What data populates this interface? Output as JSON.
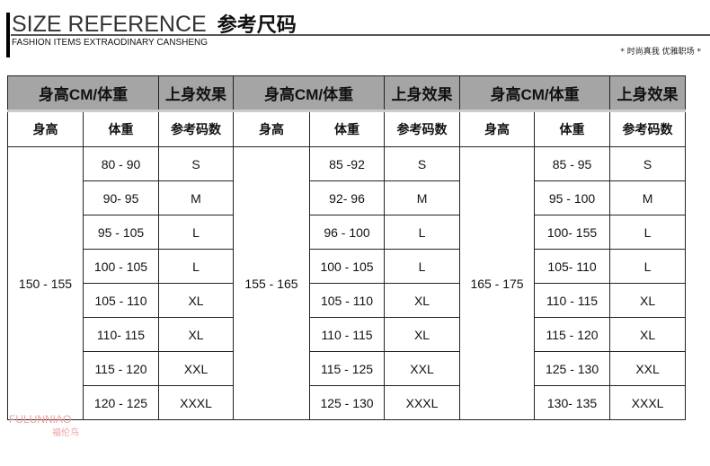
{
  "header": {
    "title": "SIZE REFERENCE",
    "title_cn": "参考尺码",
    "subtitle": "FASHION  ITEMS EXTRAODINARY  CANSHENG",
    "slogan": "* 时尚真我 优雅职场 *"
  },
  "table": {
    "group_headers": [
      "身高CM/体重",
      "上身效果"
    ],
    "sub_headers": [
      "身高",
      "体重",
      "参考码数"
    ],
    "groups": [
      {
        "height": "150 - 155",
        "weights": [
          "80 - 90",
          "90- 95",
          "95 - 105",
          "100 - 105",
          "105 - 110",
          "110- 115",
          "115 - 120",
          "120 - 125"
        ]
      },
      {
        "height": "155 - 165",
        "weights": [
          "85 -92",
          "92- 96",
          "96 - 100",
          "100 - 105",
          "105 - 110",
          "110 - 115",
          "115 - 125",
          "125 - 130"
        ]
      },
      {
        "height": "165 - 175",
        "weights": [
          "85 - 95",
          "95 - 100",
          "100- 155",
          "105- 110",
          "110 - 115",
          "115 - 120",
          "125 - 130",
          "130- 135"
        ]
      }
    ],
    "sizes": [
      "S",
      "M",
      "L",
      "L",
      "XL",
      "XL",
      "XXL",
      "XXXL"
    ]
  },
  "watermark": {
    "text": "FULUNNIAO",
    "text_cn": "福伦鸟"
  }
}
